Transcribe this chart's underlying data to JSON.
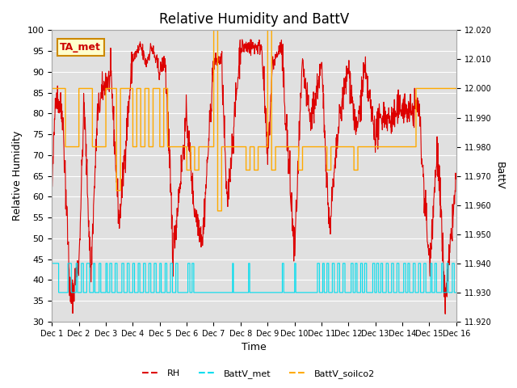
{
  "title": "Relative Humidity and BattV",
  "xlabel": "Time",
  "ylabel_left": "Relative Humidity",
  "ylabel_right": "BattV",
  "annotation_text": "TA_met",
  "annotation_border_color": "#cc8800",
  "annotation_bg": "#ffffcc",
  "annotation_text_color": "#cc0000",
  "ylim_left": [
    30,
    100
  ],
  "ylim_right": [
    11.92,
    12.02
  ],
  "rh_color": "#dd0000",
  "battv_met_color": "#00ddee",
  "battv_soilco2_color": "#ffaa00",
  "bg_color": "#e0e0e0",
  "legend_labels": [
    "RH",
    "BattV_met",
    "BattV_soilco2"
  ],
  "xticklabels": [
    "Dec 1",
    "Dec 2",
    "Dec 3",
    "Dec 4",
    "Dec 5",
    "Dec 6",
    "Dec 7",
    "Dec 8",
    "Dec 9",
    "Dec 10",
    "Dec 11",
    "Dec 12",
    "Dec 13",
    "Dec 14",
    "Dec 15",
    "Dec 16"
  ],
  "title_fontsize": 12,
  "axis_label_fontsize": 9,
  "tick_fontsize": 8
}
